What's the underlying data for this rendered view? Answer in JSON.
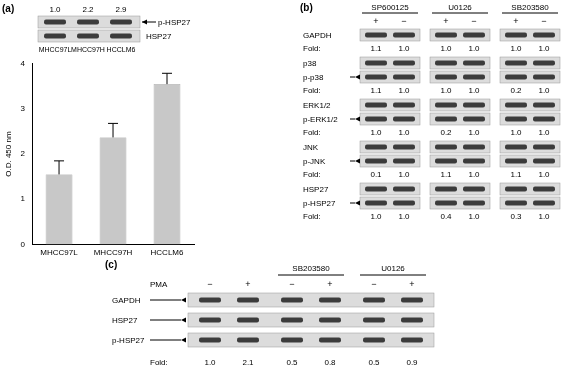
{
  "chart_data": {
    "type": "bar",
    "categories": [
      "MHCC97L",
      "MHCC97H",
      "HCCLM6"
    ],
    "values": [
      1.55,
      2.37,
      3.55
    ],
    "errors": [
      0.3,
      0.31,
      0.24
    ],
    "y_label": "O.D. 450 nm",
    "ylim": [
      0,
      4
    ],
    "yticks": [
      0,
      1,
      2,
      3,
      4
    ],
    "color": "#c8c8c8",
    "grid": false
  },
  "panel_a": {
    "label": "(a)",
    "blot": {
      "fold": [
        "1.0",
        "2.2",
        "2.9"
      ],
      "bands": [
        "p-HSP27",
        "HSP27"
      ]
    }
  },
  "panel_b": {
    "label": "(b)",
    "treatments": [
      "SP600125",
      "U0126",
      "SB203580"
    ],
    "signs": [
      "+",
      "−"
    ],
    "fold_label": "Fold:",
    "rows": [
      {
        "bands": [
          "GAPDH"
        ],
        "fold": [
          "1.1",
          "1.0",
          "1.0",
          "1.0",
          "1.0",
          "1.0"
        ]
      },
      {
        "bands": [
          "p38",
          "p-p38"
        ],
        "fold": [
          "1.1",
          "1.0",
          "1.0",
          "1.0",
          "0.2",
          "1.0"
        ]
      },
      {
        "bands": [
          "ERK1/2",
          "p-ERK1/2"
        ],
        "fold": [
          "1.0",
          "1.0",
          "0.2",
          "1.0",
          "1.0",
          "1.0"
        ]
      },
      {
        "bands": [
          "JNK",
          "p-JNK"
        ],
        "fold": [
          "0.1",
          "1.0",
          "1.1",
          "1.0",
          "1.1",
          "1.0"
        ]
      },
      {
        "bands": [
          "HSP27",
          "p-HSP27"
        ],
        "fold": [
          "1.0",
          "1.0",
          "0.4",
          "1.0",
          "0.3",
          "1.0"
        ]
      }
    ]
  },
  "panel_c": {
    "label": "(c)",
    "treatment_label": "PMA",
    "signs": [
      "−",
      "+",
      "−",
      "+",
      "−",
      "+"
    ],
    "groups": [
      null,
      "SB203580",
      "U0126"
    ],
    "bands": [
      "GAPDH",
      "HSP27",
      "p-HSP27"
    ],
    "fold_label": "Fold:",
    "fold": [
      "1.0",
      "2.1",
      "0.5",
      "0.8",
      "0.5",
      "0.9"
    ]
  }
}
